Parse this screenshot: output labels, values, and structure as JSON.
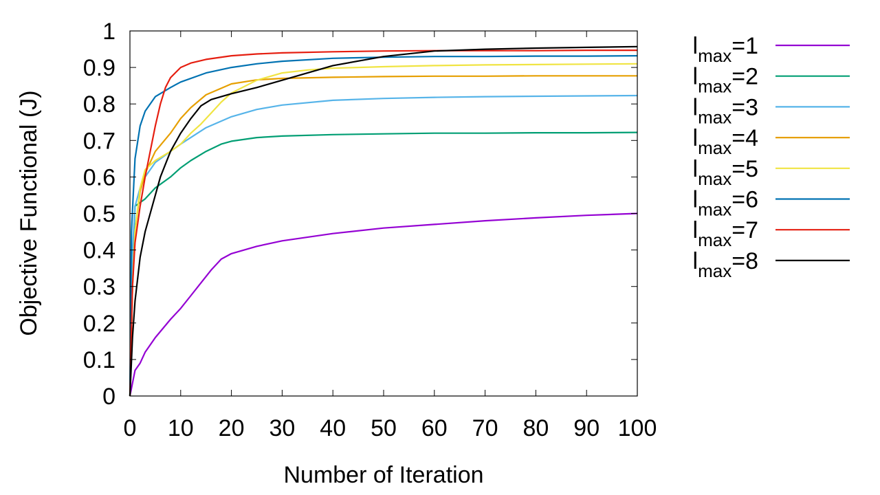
{
  "chart_data": {
    "type": "line",
    "title": "",
    "xlabel": "Number of Iteration",
    "ylabel": "Objective Functional (J)",
    "xlim": [
      0,
      100
    ],
    "ylim": [
      0,
      1
    ],
    "x_ticks": [
      "0",
      "10",
      "20",
      "30",
      "40",
      "50",
      "60",
      "70",
      "80",
      "90",
      "100"
    ],
    "y_ticks": [
      "0",
      "0.1",
      "0.2",
      "0.3",
      "0.4",
      "0.5",
      "0.6",
      "0.7",
      "0.8",
      "0.9",
      "1"
    ],
    "grid": false,
    "legend_position": "right",
    "series": [
      {
        "name": "lmax=1",
        "legend_base": "l",
        "legend_sub": "max",
        "legend_tail": "=1",
        "color": "#9400d3",
        "x": [
          0,
          1,
          2,
          3,
          5,
          8,
          10,
          12,
          14,
          16,
          18,
          20,
          25,
          30,
          40,
          50,
          60,
          70,
          80,
          90,
          100
        ],
        "y": [
          0,
          0.07,
          0.09,
          0.12,
          0.16,
          0.21,
          0.24,
          0.275,
          0.31,
          0.345,
          0.375,
          0.39,
          0.41,
          0.425,
          0.445,
          0.46,
          0.47,
          0.48,
          0.488,
          0.495,
          0.5
        ]
      },
      {
        "name": "lmax=2",
        "legend_base": "l",
        "legend_sub": "max",
        "legend_tail": "=2",
        "color": "#009e73",
        "x": [
          0,
          0.5,
          1,
          2,
          3,
          5,
          8,
          10,
          12,
          15,
          18,
          20,
          25,
          30,
          40,
          50,
          60,
          70,
          80,
          90,
          100
        ],
        "y": [
          0,
          0.35,
          0.52,
          0.53,
          0.54,
          0.57,
          0.6,
          0.625,
          0.645,
          0.67,
          0.69,
          0.698,
          0.708,
          0.712,
          0.716,
          0.718,
          0.72,
          0.72,
          0.721,
          0.721,
          0.722
        ]
      },
      {
        "name": "lmax=3",
        "legend_base": "l",
        "legend_sub": "max",
        "legend_tail": "=3",
        "color": "#56b4e9",
        "x": [
          0,
          0.5,
          1,
          2,
          3,
          5,
          8,
          10,
          15,
          20,
          25,
          30,
          40,
          50,
          60,
          70,
          80,
          90,
          100
        ],
        "y": [
          0,
          0.4,
          0.52,
          0.57,
          0.6,
          0.64,
          0.67,
          0.69,
          0.735,
          0.765,
          0.785,
          0.797,
          0.81,
          0.815,
          0.818,
          0.82,
          0.821,
          0.822,
          0.823
        ]
      },
      {
        "name": "lmax=4",
        "legend_base": "l",
        "legend_sub": "max",
        "legend_tail": "=4",
        "color": "#e69f00",
        "x": [
          0,
          0.5,
          1,
          2,
          3,
          5,
          8,
          10,
          12,
          15,
          20,
          25,
          30,
          40,
          50,
          60,
          70,
          80,
          90,
          100
        ],
        "y": [
          0,
          0.3,
          0.45,
          0.56,
          0.61,
          0.67,
          0.72,
          0.76,
          0.79,
          0.825,
          0.855,
          0.866,
          0.87,
          0.873,
          0.875,
          0.876,
          0.876,
          0.877,
          0.877,
          0.877
        ]
      },
      {
        "name": "lmax=5",
        "legend_base": "l",
        "legend_sub": "max",
        "legend_tail": "=5",
        "color": "#f0e442",
        "x": [
          0,
          0.5,
          1,
          2,
          3,
          5,
          8,
          10,
          12,
          14,
          16,
          18,
          20,
          25,
          30,
          35,
          40,
          50,
          60,
          70,
          80,
          90,
          100
        ],
        "y": [
          0,
          0.3,
          0.45,
          0.57,
          0.62,
          0.645,
          0.67,
          0.69,
          0.72,
          0.745,
          0.775,
          0.805,
          0.83,
          0.865,
          0.885,
          0.893,
          0.898,
          0.902,
          0.905,
          0.907,
          0.908,
          0.909,
          0.91
        ]
      },
      {
        "name": "lmax=6",
        "legend_base": "l",
        "legend_sub": "max",
        "legend_tail": "=6",
        "color": "#0072b2",
        "x": [
          0,
          0.3,
          1,
          2,
          3,
          5,
          8,
          10,
          15,
          20,
          25,
          30,
          40,
          50,
          60,
          70,
          80,
          90,
          100
        ],
        "y": [
          0,
          0.45,
          0.65,
          0.74,
          0.78,
          0.82,
          0.845,
          0.86,
          0.885,
          0.9,
          0.91,
          0.917,
          0.925,
          0.928,
          0.93,
          0.93,
          0.931,
          0.931,
          0.932
        ]
      },
      {
        "name": "lmax=7",
        "legend_base": "l",
        "legend_sub": "max",
        "legend_tail": "=7",
        "color": "#e51e10",
        "x": [
          0,
          0.5,
          1,
          2,
          3,
          4,
          5,
          6,
          7,
          8,
          10,
          12,
          15,
          20,
          25,
          30,
          40,
          50,
          60,
          70,
          80,
          90,
          100
        ],
        "y": [
          0,
          0.3,
          0.42,
          0.52,
          0.6,
          0.67,
          0.74,
          0.8,
          0.845,
          0.872,
          0.9,
          0.912,
          0.922,
          0.932,
          0.937,
          0.94,
          0.943,
          0.945,
          0.946,
          0.946,
          0.946,
          0.947,
          0.947
        ]
      },
      {
        "name": "lmax=8",
        "legend_base": "l",
        "legend_sub": "max",
        "legend_tail": "=8",
        "color": "#000000",
        "x": [
          0,
          0.5,
          1,
          2,
          3,
          4,
          5,
          6,
          8,
          10,
          12,
          14,
          16,
          18,
          20,
          25,
          30,
          35,
          40,
          50,
          60,
          70,
          80,
          90,
          100
        ],
        "y": [
          0,
          0.16,
          0.26,
          0.38,
          0.45,
          0.5,
          0.55,
          0.6,
          0.67,
          0.72,
          0.76,
          0.795,
          0.812,
          0.82,
          0.828,
          0.845,
          0.865,
          0.885,
          0.905,
          0.93,
          0.945,
          0.95,
          0.953,
          0.955,
          0.957
        ]
      }
    ]
  }
}
